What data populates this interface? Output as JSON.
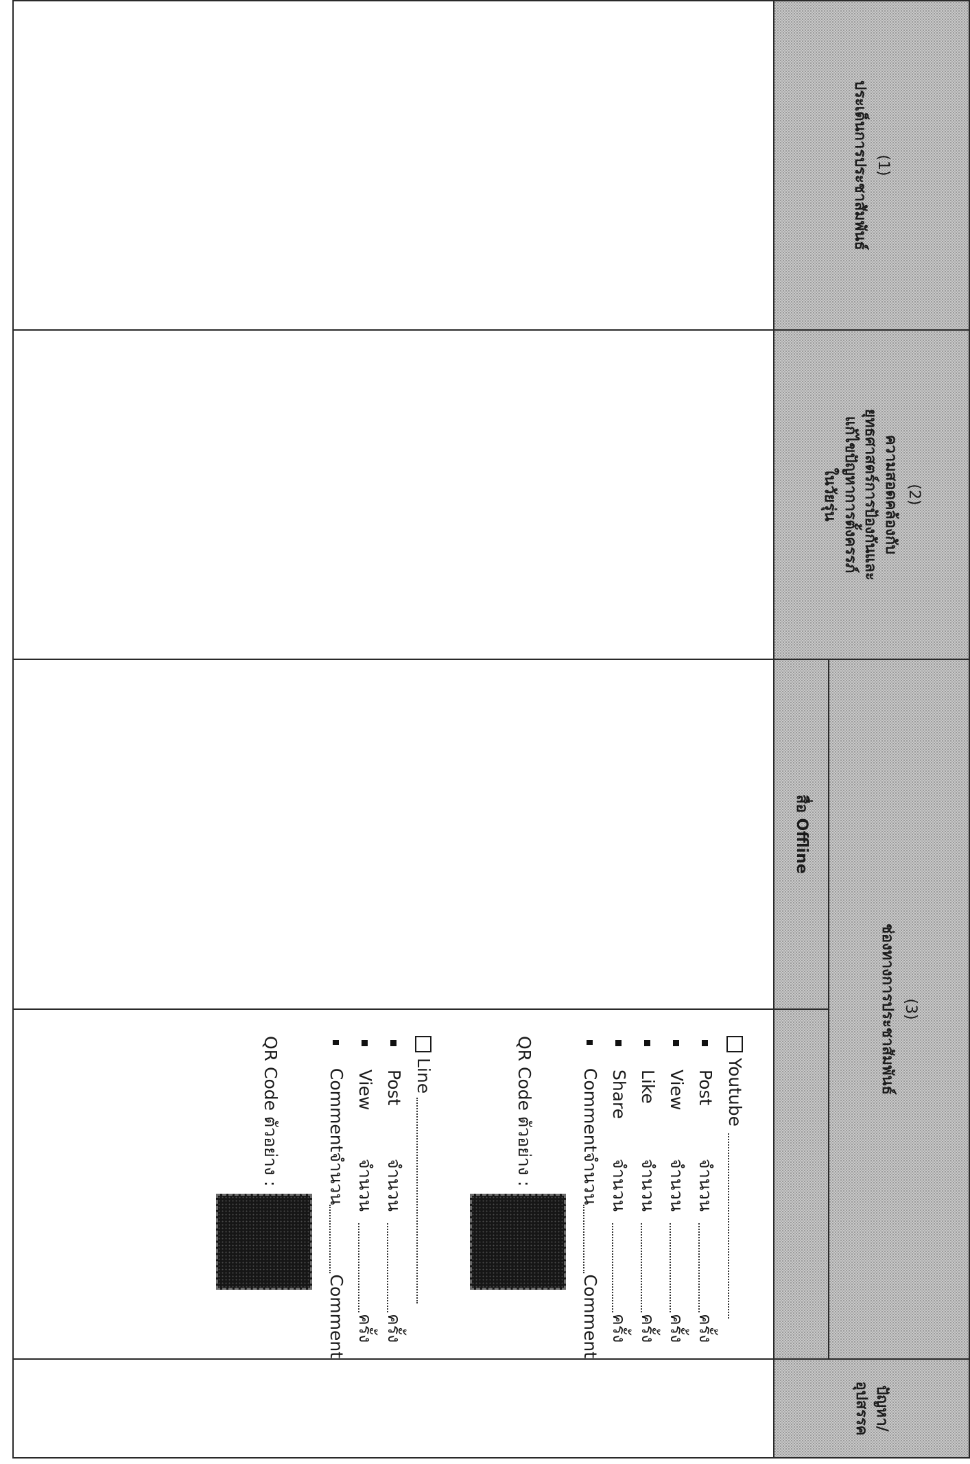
{
  "columns": {
    "col1": {
      "number": "(1)",
      "title": "ประเด็นการประชาสัมพันธ์"
    },
    "col2": {
      "number": "(2)",
      "line1": "ความสอดคล้องกับ",
      "line2": "ยุทธศาสตร์การป้องกันและ",
      "line3": "แก้ไขปัญหาการตั้งครรภ์",
      "line4": "ในวัยรุ่น"
    },
    "col3": {
      "number": "(3)",
      "title": "ช่องทางการประชาสัมพันธ์",
      "sub_offline": "สื่อ Offline"
    },
    "col4": {
      "title": "ปัญหา/อุปสรรค"
    }
  },
  "channels": {
    "youtube": {
      "name": "Youtube",
      "metrics": [
        {
          "label": "Post",
          "count_word": "จำนวน",
          "unit": "ครั้ง"
        },
        {
          "label": "View",
          "count_word": "จำนวน",
          "unit": "ครั้ง"
        },
        {
          "label": "Like",
          "count_word": "จำนวน",
          "unit": "ครั้ง"
        },
        {
          "label": "Share",
          "count_word": "จำนวน",
          "unit": "ครั้ง"
        },
        {
          "label": "Comment",
          "count_word": "จำนวน",
          "unit": "Comment"
        }
      ],
      "qr_label": "QR Code ตัวอย่าง :"
    },
    "line": {
      "name": "Line",
      "metrics": [
        {
          "label": "Post",
          "count_word": "จำนวน",
          "unit": "ครั้ง"
        },
        {
          "label": "View",
          "count_word": "จำนวน",
          "unit": "ครั้ง"
        },
        {
          "label": "Comment",
          "count_word": "จำนวน",
          "unit": "Comment"
        }
      ],
      "qr_label": "QR Code ตัวอย่าง :"
    }
  }
}
